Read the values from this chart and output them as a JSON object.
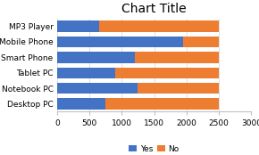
{
  "title": "Chart Title",
  "categories": [
    "Desktop PC",
    "Notebook PC",
    "Tablet PC",
    "Smart Phone",
    "Mobile Phone",
    "MP3 Player"
  ],
  "yes_values": [
    750,
    1250,
    900,
    1200,
    1950,
    650
  ],
  "no_values": [
    1750,
    1250,
    1600,
    1300,
    550,
    1850
  ],
  "yes_color": "#4472C4",
  "no_color": "#ED7D31",
  "xlim": [
    0,
    3000
  ],
  "xticks": [
    0,
    500,
    1000,
    1500,
    2000,
    2500,
    3000
  ],
  "bar_height": 0.72,
  "legend_labels": [
    "Yes",
    "No"
  ],
  "title_fontsize": 10,
  "tick_fontsize": 6.5,
  "legend_fontsize": 6.5,
  "ylabel_fontsize": 6.5,
  "background_color": "#ffffff",
  "grid_color": "#d9d9d9",
  "spine_color": "#c0c0c0"
}
